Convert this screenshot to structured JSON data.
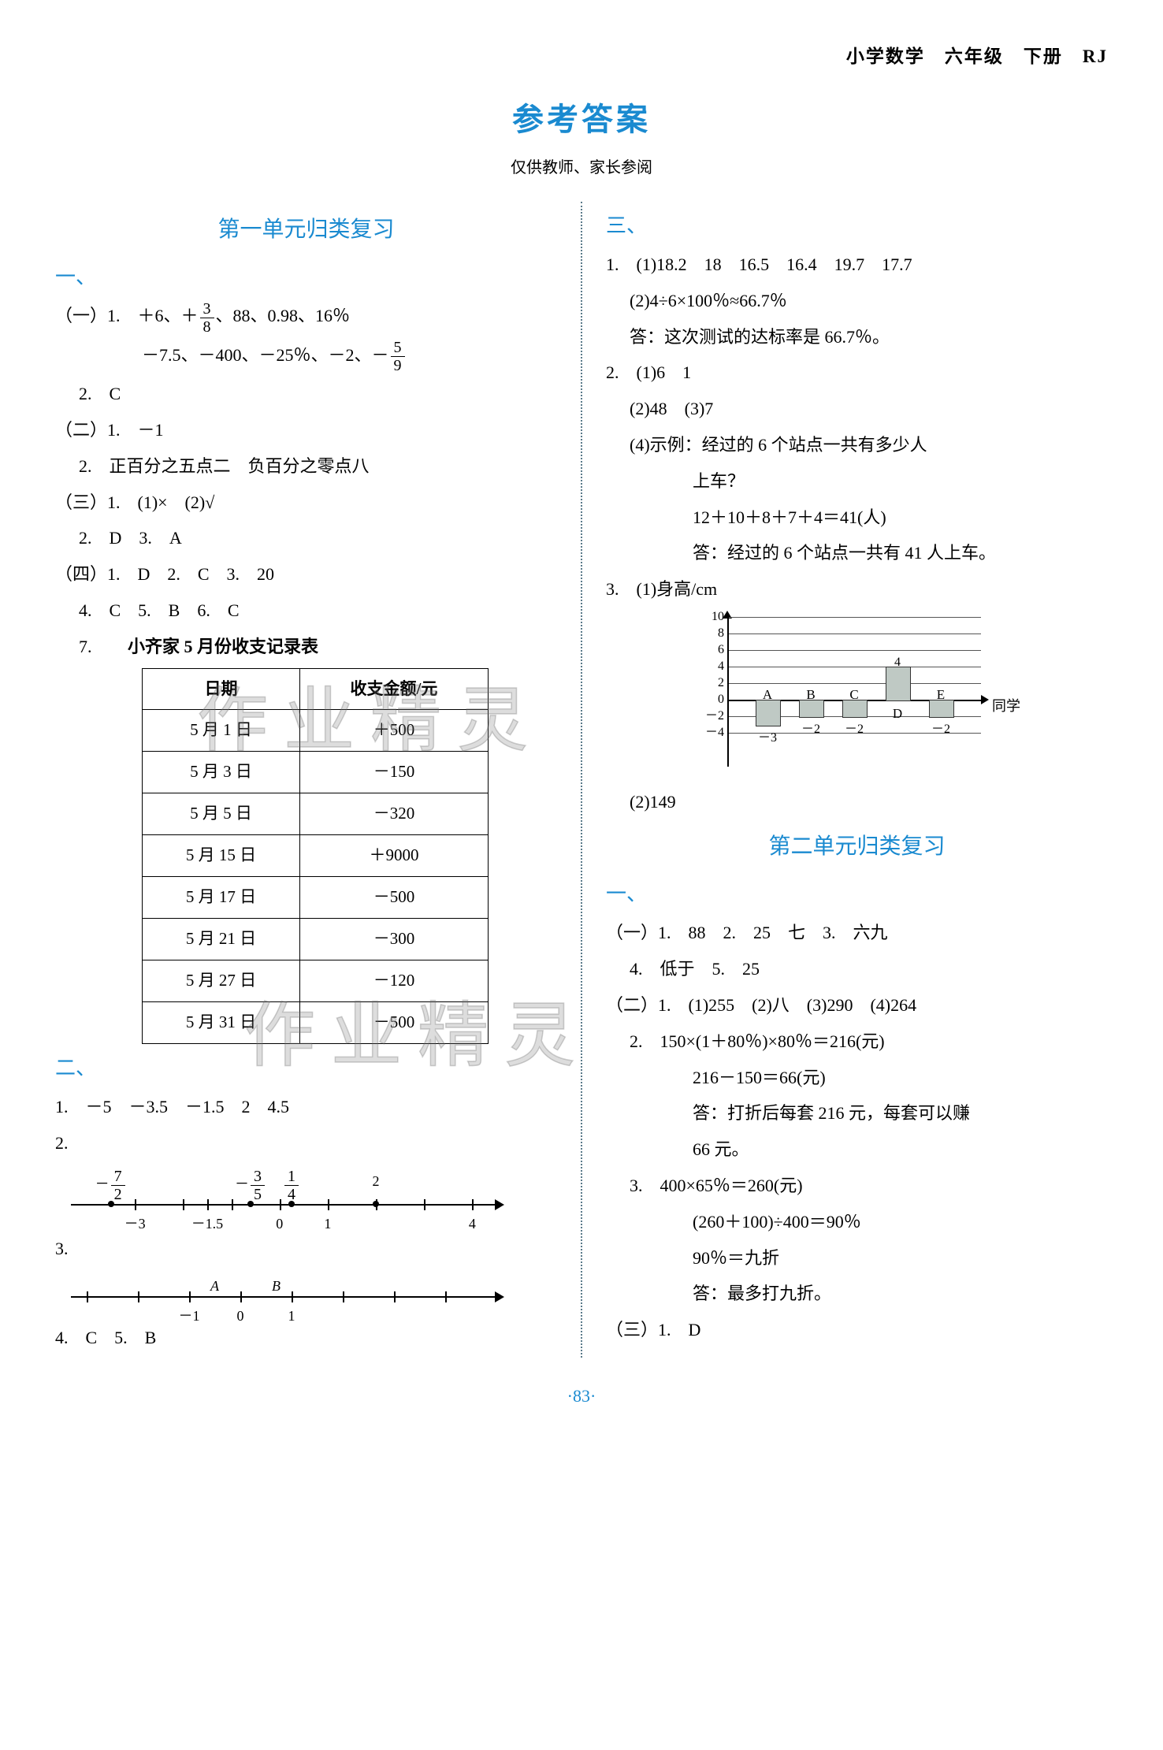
{
  "header": "小学数学　六年级　下册　RJ",
  "title": "参考答案",
  "subtitle": "仅供教师、家长参阅",
  "footer": "·83·",
  "watermark": "作业精灵",
  "left": {
    "unit": "第一单元归类复习",
    "s1": "一、",
    "p1a": "（一）1.　＋6、＋",
    "p1a2": "、88、0.98、16％",
    "p1b": "－7.5、－400、－25％、－2、－",
    "p1c": "2.　C",
    "p2a": "（二）1.　－1",
    "p2b": "2.　正百分之五点二　负百分之零点八",
    "p3a": "（三）1.　(1)×　(2)√",
    "p3b": "2.　D　3.　A",
    "p4a": "（四）1.　D　2.　C　3.　20",
    "p4b": "4.　C　5.　B　6.　C",
    "p4c": "7.",
    "tabletitle": "小齐家 5 月份收支记录表",
    "th1": "日期",
    "th2": "收支金额/元",
    "rows": [
      [
        "5 月 1 日",
        "＋500"
      ],
      [
        "5 月 3 日",
        "－150"
      ],
      [
        "5 月 5 日",
        "－320"
      ],
      [
        "5 月 15 日",
        "＋9000"
      ],
      [
        "5 月 17 日",
        "－500"
      ],
      [
        "5 月 21 日",
        "－300"
      ],
      [
        "5 月 27 日",
        "－120"
      ],
      [
        "5 月 31 日",
        "－500"
      ]
    ],
    "s2": "二、",
    "q1": "1.　－5　－3.5　－1.5　2　4.5",
    "q2": "2.",
    "nl2": {
      "ticks": [
        -3,
        -2,
        -1.5,
        -1,
        0,
        1,
        2,
        3,
        4
      ],
      "labels": {
        "-3": "－3",
        "-1.5": "－1.5",
        "0": "0",
        "1": "1",
        "4": "4"
      },
      "top": [
        {
          "x": -3.5,
          "n": "7",
          "d": "2",
          "neg": true
        },
        {
          "x": -0.6,
          "n": "3",
          "d": "5",
          "neg": true
        },
        {
          "x": 0.25,
          "n": "1",
          "d": "4",
          "neg": false
        },
        {
          "x": 2,
          "t": "2"
        }
      ]
    },
    "q3": "3.",
    "nl3": {
      "labelsA": "A",
      "labelsB": "B",
      "l": {
        "-1": "－1",
        "0": "0",
        "1": "1"
      }
    },
    "q4": "4.　C　5.　B"
  },
  "right": {
    "s3": "三、",
    "r1a": "1.　(1)18.2　18　16.5　16.4　19.7　17.7",
    "r1b": "(2)4÷6×100％≈66.7％",
    "r1c": "答：这次测试的达标率是 66.7％。",
    "r2a": "2.　(1)6　1",
    "r2b": "(2)48　(3)7",
    "r2c": "(4)示例：经过的 6 个站点一共有多少人",
    "r2c2": "上车？",
    "r2d": "12＋10＋8＋7＋4＝41(人)",
    "r2e": "答：经过的 6 个站点一共有 41 人上车。",
    "r3a": "3.　(1)身高/cm",
    "chart": {
      "ylabs": [
        "10",
        "8",
        "6",
        "4",
        "2",
        "0",
        "－2",
        "－4"
      ],
      "yvals": [
        10,
        8,
        6,
        4,
        2,
        0,
        -2,
        -4
      ],
      "bars": [
        {
          "name": "A",
          "v": -3,
          "top": "－3"
        },
        {
          "name": "B",
          "v": -2,
          "top": "－2"
        },
        {
          "name": "C",
          "v": -2,
          "top": "－2"
        },
        {
          "name": "D",
          "v": 4,
          "top": "4"
        },
        {
          "name": "E",
          "v": -2,
          "top": "－2"
        }
      ],
      "xend": "同学"
    },
    "r3b": "(2)149",
    "unit2": "第二单元归类复习",
    "s1b": "一、",
    "u2a": "（一）1.　88　2.　25　七　3.　六九",
    "u2a2": "4.　低于　5.　25",
    "u2b": "（二）1.　(1)255　(2)八　(3)290　(4)264",
    "u2c": "2.　150×(1＋80％)×80％＝216(元)",
    "u2c2": "216－150＝66(元)",
    "u2c3": "答：打折后每套 216 元，每套可以赚",
    "u2c4": "66 元。",
    "u2d": "3.　400×65％＝260(元)",
    "u2d2": "(260＋100)÷400＝90％",
    "u2d3": "90％＝九折",
    "u2d4": "答：最多打九折。",
    "u2e": "（三）1.　D"
  },
  "frac38": {
    "n": "3",
    "d": "8"
  },
  "frac59": {
    "n": "5",
    "d": "9"
  }
}
